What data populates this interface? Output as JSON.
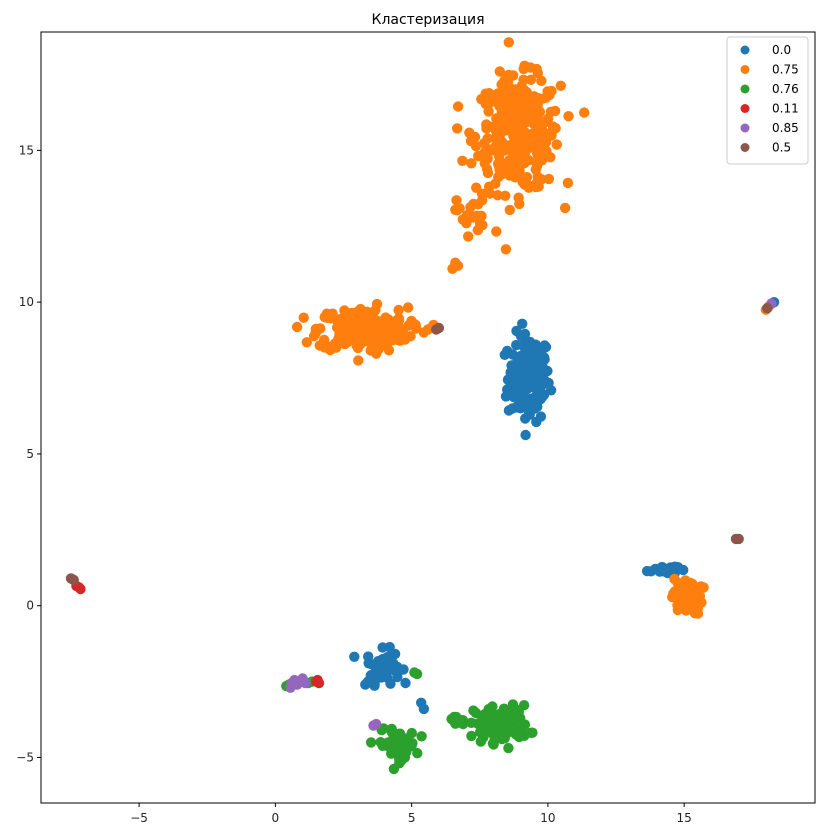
{
  "chart_data": {
    "type": "scatter",
    "title": "Кластеризация",
    "xlim": [
      -8.6,
      19.8
    ],
    "ylim": [
      -6.5,
      18.9
    ],
    "xticks": [
      -5,
      0,
      5,
      10,
      15
    ],
    "yticks": [
      -5,
      0,
      5,
      10,
      15
    ],
    "legend_position": "top-right",
    "grid": false,
    "series": [
      {
        "name": "0.0",
        "color": "#1f77b4",
        "blobs": [
          [
            [
              9.3,
              7.5
            ],
            [
              0.7,
              1.3
            ],
            160
          ],
          [
            [
              3.95,
              -2.0
            ],
            [
              0.55,
              0.5
            ],
            45
          ],
          [
            [
              14.2,
              1.2
            ],
            [
              0.5,
              0.15
            ],
            20
          ]
        ],
        "points": [
          [
            3.3,
            -2.6
          ],
          [
            3.5,
            -2.3
          ],
          [
            4.2,
            -2.1
          ],
          [
            4.45,
            -2.2
          ],
          [
            4.7,
            -2.1
          ],
          [
            5.35,
            -3.2
          ],
          [
            5.45,
            -3.4
          ],
          [
            18.3,
            10.0
          ],
          [
            18.2,
            9.95
          ],
          [
            3.4,
            -2.5
          ]
        ]
      },
      {
        "name": "0.75",
        "color": "#ff7f0e",
        "blobs": [
          [
            [
              8.9,
              15.5
            ],
            [
              1.4,
              1.7
            ],
            320
          ],
          [
            [
              3.2,
              9.1
            ],
            [
              1.5,
              0.65
            ],
            230
          ],
          [
            [
              15.1,
              0.3
            ],
            [
              0.5,
              0.55
            ],
            45
          ],
          [
            [
              7.2,
              12.9
            ],
            [
              0.5,
              0.6
            ],
            25
          ]
        ],
        "points": [
          [
            6.6,
            11.3
          ],
          [
            6.5,
            11.1
          ],
          [
            6.7,
            11.2
          ],
          [
            5.6,
            9.1
          ],
          [
            5.8,
            9.25
          ],
          [
            5.45,
            9.0
          ],
          [
            18.0,
            9.75
          ],
          [
            18.1,
            9.85
          ]
        ]
      },
      {
        "name": "0.76",
        "color": "#2ca02c",
        "blobs": [
          [
            [
              8.3,
              -3.9
            ],
            [
              0.9,
              0.55
            ],
            110
          ],
          [
            [
              4.5,
              -4.6
            ],
            [
              0.6,
              0.45
            ],
            60
          ],
          [
            [
              6.6,
              -3.8
            ],
            [
              0.3,
              0.15
            ],
            10
          ]
        ],
        "points": [
          [
            0.4,
            -2.65
          ],
          [
            0.5,
            -2.6
          ],
          [
            1.2,
            -2.55
          ],
          [
            1.35,
            -2.5
          ],
          [
            5.1,
            -2.2
          ],
          [
            5.2,
            -2.25
          ],
          [
            3.9,
            -4.1
          ]
        ]
      },
      {
        "name": "0.11",
        "color": "#d62728",
        "blobs": [],
        "points": [
          [
            -7.2,
            0.6
          ],
          [
            -7.3,
            0.65
          ],
          [
            -7.15,
            0.55
          ],
          [
            1.5,
            -2.5
          ],
          [
            1.6,
            -2.55
          ],
          [
            1.55,
            -2.45
          ]
        ]
      },
      {
        "name": "0.85",
        "color": "#9467bd",
        "blobs": [],
        "points": [
          [
            0.6,
            -2.55
          ],
          [
            0.7,
            -2.45
          ],
          [
            0.9,
            -2.5
          ],
          [
            1.0,
            -2.4
          ],
          [
            1.1,
            -2.55
          ],
          [
            0.8,
            -2.6
          ],
          [
            0.55,
            -2.7
          ],
          [
            3.6,
            -3.95
          ],
          [
            3.7,
            -3.9
          ],
          [
            18.2,
            9.95
          ]
        ]
      },
      {
        "name": "0.5",
        "color": "#8c564b",
        "blobs": [],
        "points": [
          [
            -7.5,
            0.9
          ],
          [
            -7.4,
            0.85
          ],
          [
            6.0,
            9.15
          ],
          [
            5.9,
            9.1
          ],
          [
            16.9,
            2.2
          ],
          [
            17.0,
            2.2
          ],
          [
            18.05,
            9.8
          ]
        ]
      }
    ]
  }
}
